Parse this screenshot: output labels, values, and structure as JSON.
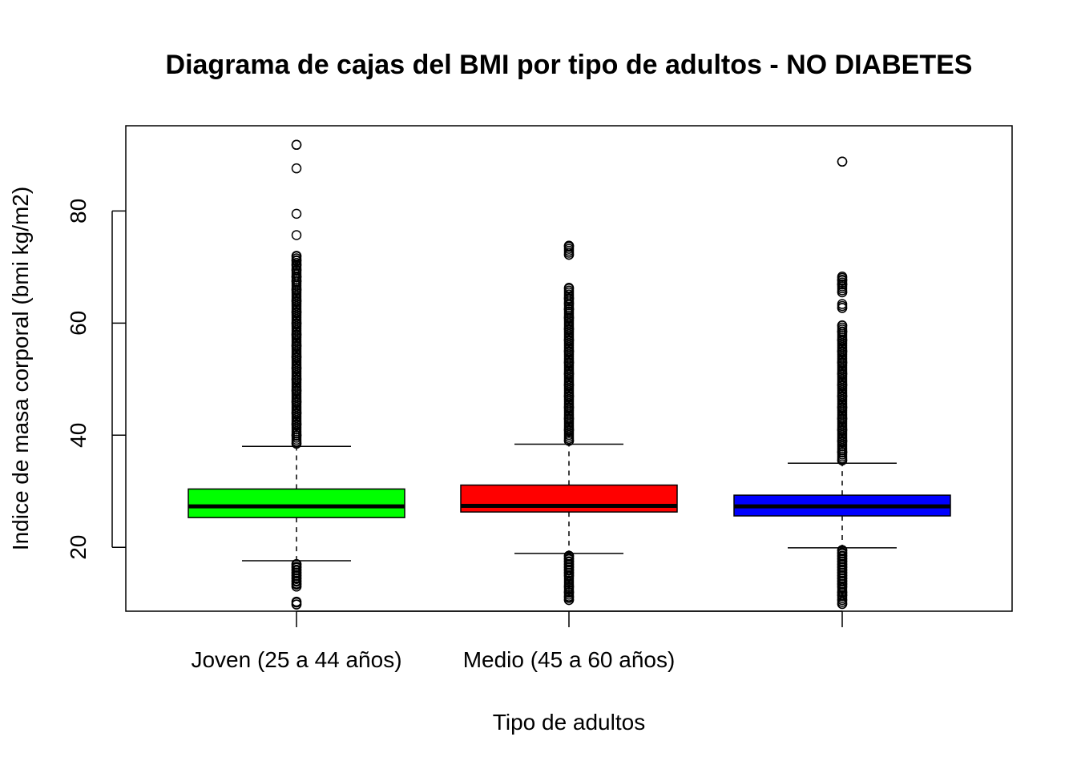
{
  "chart_data": {
    "type": "boxplot",
    "title": "Diagrama de cajas del BMI por tipo de adultos - NO DIABETES",
    "xlabel": "Tipo de adultos",
    "ylabel": "Indice de masa corporal (bmi kg/m2)",
    "yticks": [
      20,
      40,
      60,
      80
    ],
    "ylim": [
      8.6,
      95.2
    ],
    "grid": false,
    "legend": "none",
    "categories": [
      "Joven (25 a 44 años)",
      "Medio (45 a 60 años)",
      ""
    ],
    "boxes": [
      {
        "category": "Joven (25 a 44 años)",
        "color": "#00ff00",
        "whisker_low": 17.6,
        "q1": 25.3,
        "median": 27.3,
        "q3": 30.4,
        "whisker_high": 38.0,
        "outliers_high": [
          38.5,
          40,
          42,
          44,
          46,
          48,
          50,
          52,
          54,
          56,
          58,
          60,
          62,
          64,
          66,
          67.5,
          68.3,
          69.5,
          70.4,
          71.2,
          72,
          75.7,
          79.5,
          87.6,
          91.8
        ],
        "outliers_low": [
          17,
          16.5,
          16,
          15.5,
          15,
          14.5,
          14,
          13.5,
          13,
          10.3,
          9.8
        ]
      },
      {
        "category": "Medio (45 a 60 años)",
        "color": "#ff0000",
        "whisker_low": 18.9,
        "q1": 26.3,
        "median": 27.4,
        "q3": 31.1,
        "whisker_high": 38.4,
        "outliers_high": [
          39,
          41,
          43,
          45,
          47,
          49,
          51,
          53,
          55,
          57,
          59,
          61,
          62.5,
          63.5,
          64.4,
          66.3,
          72.2,
          73.8
        ],
        "outliers_low": [
          18.5,
          18,
          17.5,
          17,
          16.5,
          16,
          15.5,
          15,
          13,
          12,
          11.2,
          10.6
        ]
      },
      {
        "category": "",
        "color": "#0000ff",
        "whisker_low": 19.9,
        "q1": 25.6,
        "median": 27.3,
        "q3": 29.3,
        "whisker_high": 35.0,
        "outliers_high": [
          35.5,
          37,
          39,
          41,
          43,
          45,
          47,
          49,
          51,
          53,
          55,
          57,
          58.5,
          59.6,
          62.7,
          63.4,
          65.5,
          66.9,
          67.7,
          68.3,
          88.8
        ],
        "outliers_low": [
          19.5,
          19,
          18.5,
          18,
          17.5,
          17,
          16.5,
          16,
          15.5,
          15,
          14.5,
          14,
          13.5,
          13,
          12,
          11.5,
          10.6,
          9.9
        ]
      }
    ]
  }
}
